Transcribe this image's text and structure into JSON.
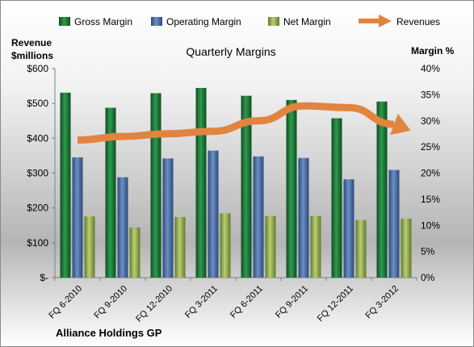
{
  "chart_data": {
    "type": "bar",
    "title": "Quarterly Margins",
    "left_axis_label": [
      "Revenue",
      "$millions"
    ],
    "right_axis_label": "Margin %",
    "company": "Alliance Holdings GP",
    "categories": [
      "FQ 6-2010",
      "FQ 9-2010",
      "FQ 12-2010",
      "FQ 3-2011",
      "FQ 6-2011",
      "FQ 9-2011",
      "FQ 12-2011",
      "FQ 3-2012"
    ],
    "left_ticks": [
      "$-",
      "$100",
      "$200",
      "$300",
      "$400",
      "$500",
      "$600"
    ],
    "right_ticks": [
      "0%",
      "5%",
      "10%",
      "15%",
      "20%",
      "25%",
      "30%",
      "35%",
      "40%"
    ],
    "y_left_range": [
      0,
      600
    ],
    "y_right_range": [
      0,
      40
    ],
    "grid": false,
    "legend_position": "top",
    "series": [
      {
        "name": "Gross Margin",
        "axis": "right",
        "kind": "bar",
        "color": "#1f7a3a",
        "values": [
          35.4,
          32.5,
          35.3,
          36.3,
          34.8,
          34.0,
          30.5,
          33.7
        ]
      },
      {
        "name": "Operating Margin",
        "axis": "right",
        "kind": "bar",
        "color": "#4a6fa8",
        "values": [
          23.0,
          19.2,
          22.8,
          24.3,
          23.2,
          22.9,
          18.8,
          20.6
        ]
      },
      {
        "name": "Net Margin",
        "axis": "right",
        "kind": "bar",
        "color": "#94ad4f",
        "values": [
          11.7,
          9.6,
          11.6,
          12.3,
          11.8,
          11.8,
          11.0,
          11.3
        ]
      },
      {
        "name": "Revenues",
        "axis": "left",
        "kind": "line",
        "color": "#e2843f",
        "values": [
          395,
          405,
          413,
          420,
          450,
          493,
          488,
          440
        ]
      }
    ]
  }
}
